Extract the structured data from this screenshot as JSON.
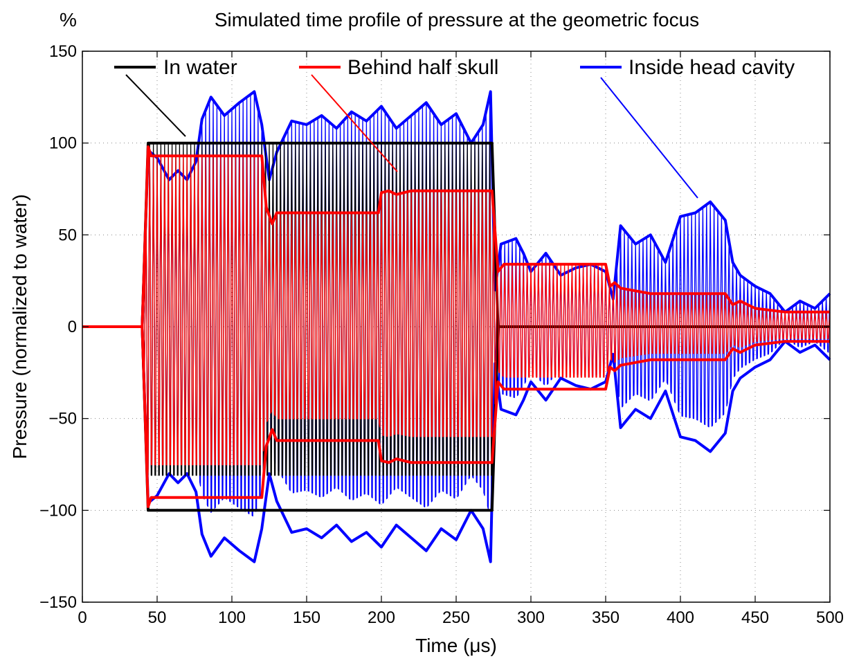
{
  "chart_data": {
    "type": "line",
    "title": "Simulated time profile of pressure at the geometric focus",
    "unit_label": "%",
    "xlabel": "Time (μs)",
    "ylabel": "Pressure (normalized to water)",
    "xlim": [
      0,
      500
    ],
    "ylim": [
      -150,
      150
    ],
    "xticks": [
      0,
      50,
      100,
      150,
      200,
      250,
      300,
      350,
      400,
      450,
      500
    ],
    "yticks": [
      -150,
      -100,
      -50,
      0,
      50,
      100,
      150
    ],
    "ytick_labels": [
      "−150",
      "−100",
      "−50",
      "0",
      "50",
      "100",
      "150"
    ],
    "grid": true,
    "legend_placement": "top",
    "series": [
      {
        "name": "In water",
        "color": "#000000",
        "envelope": [
          [
            0,
            0
          ],
          [
            40,
            0
          ],
          [
            44,
            100
          ],
          [
            274,
            100
          ],
          [
            278,
            0
          ],
          [
            500,
            0
          ]
        ]
      },
      {
        "name": "Behind half skull",
        "color": "#ff0000",
        "envelope": [
          [
            0,
            0
          ],
          [
            40,
            0
          ],
          [
            44,
            98
          ],
          [
            46,
            93
          ],
          [
            120,
            93
          ],
          [
            123,
            65
          ],
          [
            127,
            56
          ],
          [
            130,
            62
          ],
          [
            198,
            62
          ],
          [
            200,
            73
          ],
          [
            205,
            74
          ],
          [
            210,
            72
          ],
          [
            220,
            74
          ],
          [
            274,
            74
          ],
          [
            278,
            30
          ],
          [
            282,
            34
          ],
          [
            350,
            34
          ],
          [
            353,
            22
          ],
          [
            356,
            24
          ],
          [
            360,
            21
          ],
          [
            380,
            18
          ],
          [
            400,
            18
          ],
          [
            430,
            18
          ],
          [
            435,
            12
          ],
          [
            440,
            14
          ],
          [
            450,
            10
          ],
          [
            470,
            8
          ],
          [
            500,
            8
          ]
        ]
      },
      {
        "name": "Inside head cavity",
        "color": "#0000ff",
        "envelope": [
          [
            0,
            0
          ],
          [
            40,
            0
          ],
          [
            44,
            96
          ],
          [
            50,
            92
          ],
          [
            58,
            80
          ],
          [
            64,
            85
          ],
          [
            70,
            80
          ],
          [
            76,
            90
          ],
          [
            80,
            113
          ],
          [
            86,
            125
          ],
          [
            95,
            115
          ],
          [
            105,
            122
          ],
          [
            115,
            128
          ],
          [
            120,
            110
          ],
          [
            125,
            80
          ],
          [
            130,
            95
          ],
          [
            140,
            112
          ],
          [
            150,
            110
          ],
          [
            160,
            115
          ],
          [
            170,
            108
          ],
          [
            180,
            117
          ],
          [
            190,
            112
          ],
          [
            200,
            120
          ],
          [
            210,
            108
          ],
          [
            220,
            115
          ],
          [
            230,
            122
          ],
          [
            240,
            110
          ],
          [
            250,
            116
          ],
          [
            260,
            100
          ],
          [
            268,
            110
          ],
          [
            273,
            128
          ],
          [
            276,
            20
          ],
          [
            280,
            45
          ],
          [
            290,
            48
          ],
          [
            295,
            40
          ],
          [
            300,
            30
          ],
          [
            310,
            40
          ],
          [
            320,
            28
          ],
          [
            330,
            32
          ],
          [
            340,
            34
          ],
          [
            350,
            30
          ],
          [
            355,
            15
          ],
          [
            360,
            55
          ],
          [
            370,
            45
          ],
          [
            380,
            50
          ],
          [
            390,
            35
          ],
          [
            400,
            60
          ],
          [
            410,
            62
          ],
          [
            420,
            68
          ],
          [
            430,
            58
          ],
          [
            435,
            35
          ],
          [
            440,
            28
          ],
          [
            450,
            22
          ],
          [
            460,
            18
          ],
          [
            470,
            8
          ],
          [
            480,
            14
          ],
          [
            490,
            10
          ],
          [
            500,
            18
          ]
        ]
      }
    ]
  }
}
